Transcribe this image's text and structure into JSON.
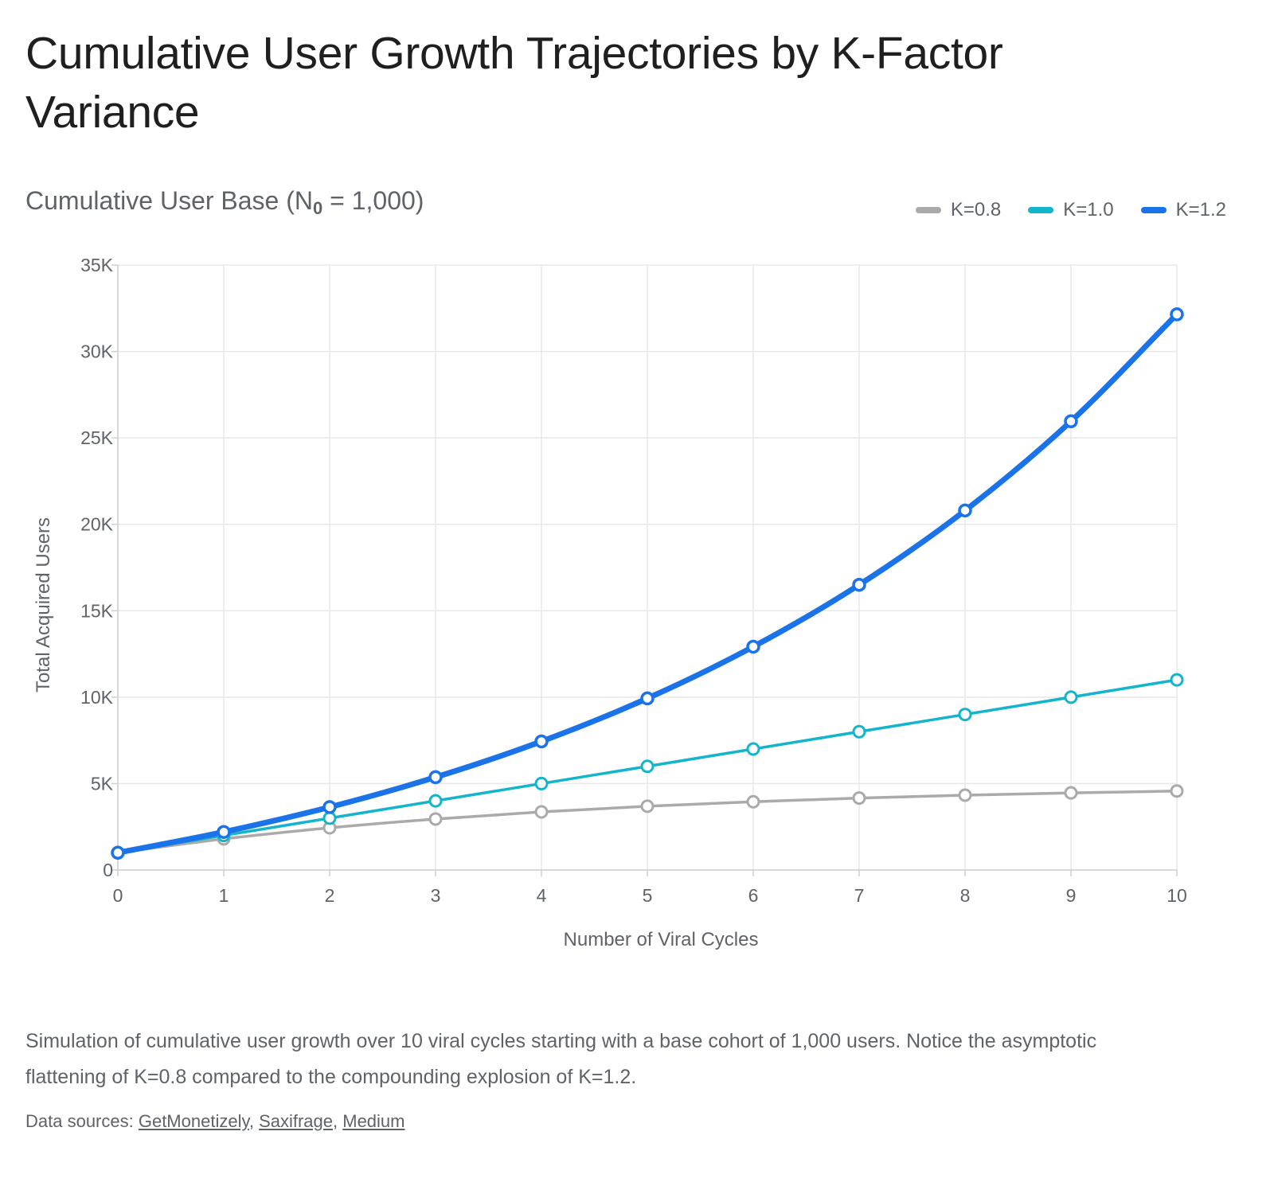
{
  "title": "Cumulative User Growth Trajectories by K-Factor Variance",
  "subtitle_prefix": "Cumulative User Base (N",
  "subtitle_sub": "0",
  "subtitle_suffix": " = 1,000)",
  "caption": "Simulation of cumulative user growth over 10 viral cycles starting with a base cohort of 1,000 users. Notice the asymptotic flattening of K=0.8 compared to the compounding explosion of K=1.2.",
  "sources": {
    "prefix": "Data sources: ",
    "links": [
      "GetMonetizely",
      "Saxifrage",
      "Medium"
    ]
  },
  "chart_data": {
    "type": "line",
    "xlabel": "Number of Viral Cycles",
    "ylabel": "Total Acquired Users",
    "x": [
      0,
      1,
      2,
      3,
      4,
      5,
      6,
      7,
      8,
      9,
      10
    ],
    "xlim": [
      0,
      10
    ],
    "ylim": [
      0,
      35000
    ],
    "yticks": [
      0,
      5000,
      10000,
      15000,
      20000,
      25000,
      30000,
      35000
    ],
    "ytick_labels": [
      "0",
      "5K",
      "10K",
      "15K",
      "20K",
      "25K",
      "30K",
      "35K"
    ],
    "grid": true,
    "legend_position": "top-right",
    "series": [
      {
        "name": "K=0.8",
        "color": "#aaaaaa",
        "values": [
          1000,
          1800,
          2440,
          2950,
          3360,
          3690,
          3950,
          4160,
          4330,
          4460,
          4570
        ]
      },
      {
        "name": "K=1.0",
        "color": "#12b5cb",
        "values": [
          1000,
          2000,
          3000,
          4000,
          5000,
          6000,
          7000,
          8000,
          9000,
          10000,
          11000
        ]
      },
      {
        "name": "K=1.2",
        "color": "#1a73e8",
        "values": [
          1000,
          2200,
          3640,
          5370,
          7440,
          9930,
          12920,
          16500,
          20800,
          25960,
          32150
        ]
      }
    ]
  }
}
